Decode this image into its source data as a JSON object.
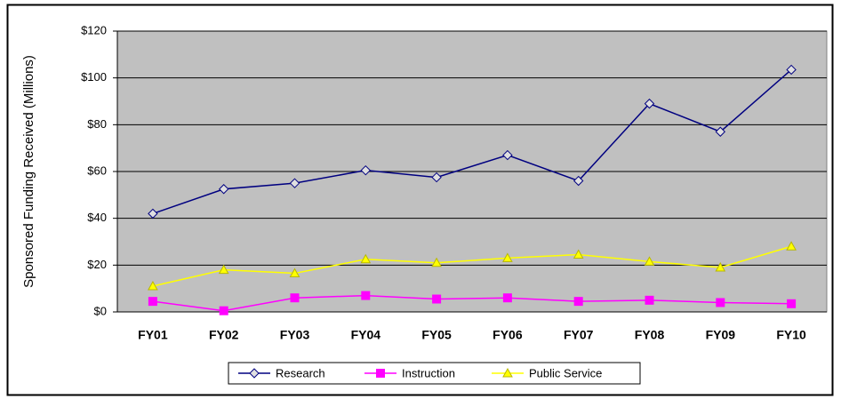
{
  "chart_data": {
    "type": "line",
    "y_label": "Sponsored Funding Received (Millions)",
    "categories": [
      "FY01",
      "FY02",
      "FY03",
      "FY04",
      "FY05",
      "FY06",
      "FY07",
      "FY08",
      "FY09",
      "FY10"
    ],
    "series": [
      {
        "name": "Research",
        "color": "#000080",
        "marker": "diamond",
        "values": [
          42,
          52.5,
          55,
          60.5,
          57.5,
          67,
          56,
          89,
          77,
          103.5
        ]
      },
      {
        "name": "Instruction",
        "color": "#ff00ff",
        "marker": "square",
        "values": [
          4.5,
          0.5,
          6,
          7,
          5.5,
          6,
          4.5,
          5,
          4,
          3.5
        ]
      },
      {
        "name": "Public Service",
        "color": "#ffff00",
        "marker": "triangle",
        "values": [
          11,
          18,
          16.5,
          22.5,
          21,
          23,
          24.5,
          21.5,
          19,
          28
        ]
      }
    ],
    "ylim": [
      0,
      120
    ],
    "yticks": [
      {
        "value": 0,
        "label": "$0"
      },
      {
        "value": 20,
        "label": "$20"
      },
      {
        "value": 40,
        "label": "$40"
      },
      {
        "value": 60,
        "label": "$60"
      },
      {
        "value": 80,
        "label": "$80"
      },
      {
        "value": 100,
        "label": "$100"
      },
      {
        "value": 120,
        "label": "$120"
      }
    ],
    "grid": true,
    "legend": "bottom",
    "plot_background": "#c0c0c0"
  }
}
